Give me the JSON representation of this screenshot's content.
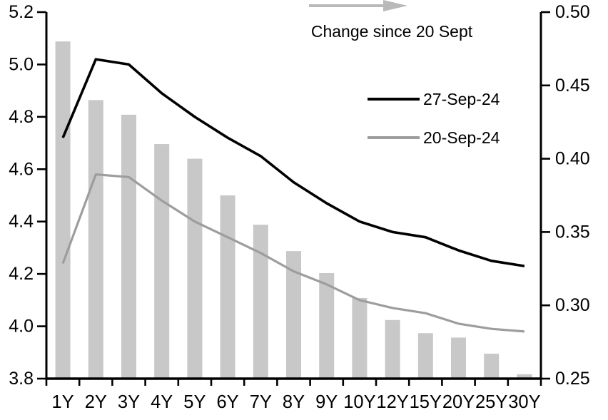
{
  "chart_data": {
    "type": "bar",
    "subtype": "bar-plus-two-lines",
    "categories": [
      "1Y",
      "2Y",
      "3Y",
      "4Y",
      "5Y",
      "6Y",
      "7Y",
      "8Y",
      "9Y",
      "10Y",
      "12Y",
      "15Y",
      "20Y",
      "25Y",
      "30Y"
    ],
    "series": [
      {
        "name": "Change since 20 Sept",
        "type": "bar",
        "axis": "right",
        "color": "#c8c8c8",
        "values": [
          0.48,
          0.44,
          0.43,
          0.41,
          0.4,
          0.375,
          0.355,
          0.337,
          0.322,
          0.305,
          0.29,
          0.281,
          0.278,
          0.267,
          0.253
        ]
      },
      {
        "name": "27-Sep-24",
        "type": "line",
        "axis": "left",
        "color": "#000000",
        "values": [
          4.72,
          5.02,
          5.0,
          4.89,
          4.8,
          4.72,
          4.65,
          4.55,
          4.47,
          4.4,
          4.36,
          4.34,
          4.29,
          4.25,
          4.23
        ]
      },
      {
        "name": "20-Sep-24",
        "type": "line",
        "axis": "left",
        "color": "#9d9d9d",
        "values": [
          4.24,
          4.58,
          4.57,
          4.48,
          4.4,
          4.34,
          4.28,
          4.21,
          4.16,
          4.1,
          4.07,
          4.05,
          4.01,
          3.99,
          3.98
        ]
      }
    ],
    "left_axis": {
      "min": 3.8,
      "max": 5.2,
      "step": 0.2,
      "tick_labels": [
        "5.2",
        "5.0",
        "4.8",
        "4.6",
        "4.4",
        "4.2",
        "4.0",
        "3.8"
      ]
    },
    "right_axis": {
      "min": 0.25,
      "max": 0.5,
      "step": 0.05,
      "tick_labels": [
        "0.50",
        "0.45",
        "0.40",
        "0.35",
        "0.30",
        "0.25"
      ]
    },
    "grid": false,
    "legend_position": "inside-top-center-right",
    "legend": {
      "annotation": "Change since 20 Sept",
      "arrow_color": "#b9b9b9",
      "items": [
        {
          "label": "27-Sep-24",
          "color": "#000000"
        },
        {
          "label": "20-Sep-24",
          "color": "#9d9d9d"
        }
      ]
    }
  }
}
